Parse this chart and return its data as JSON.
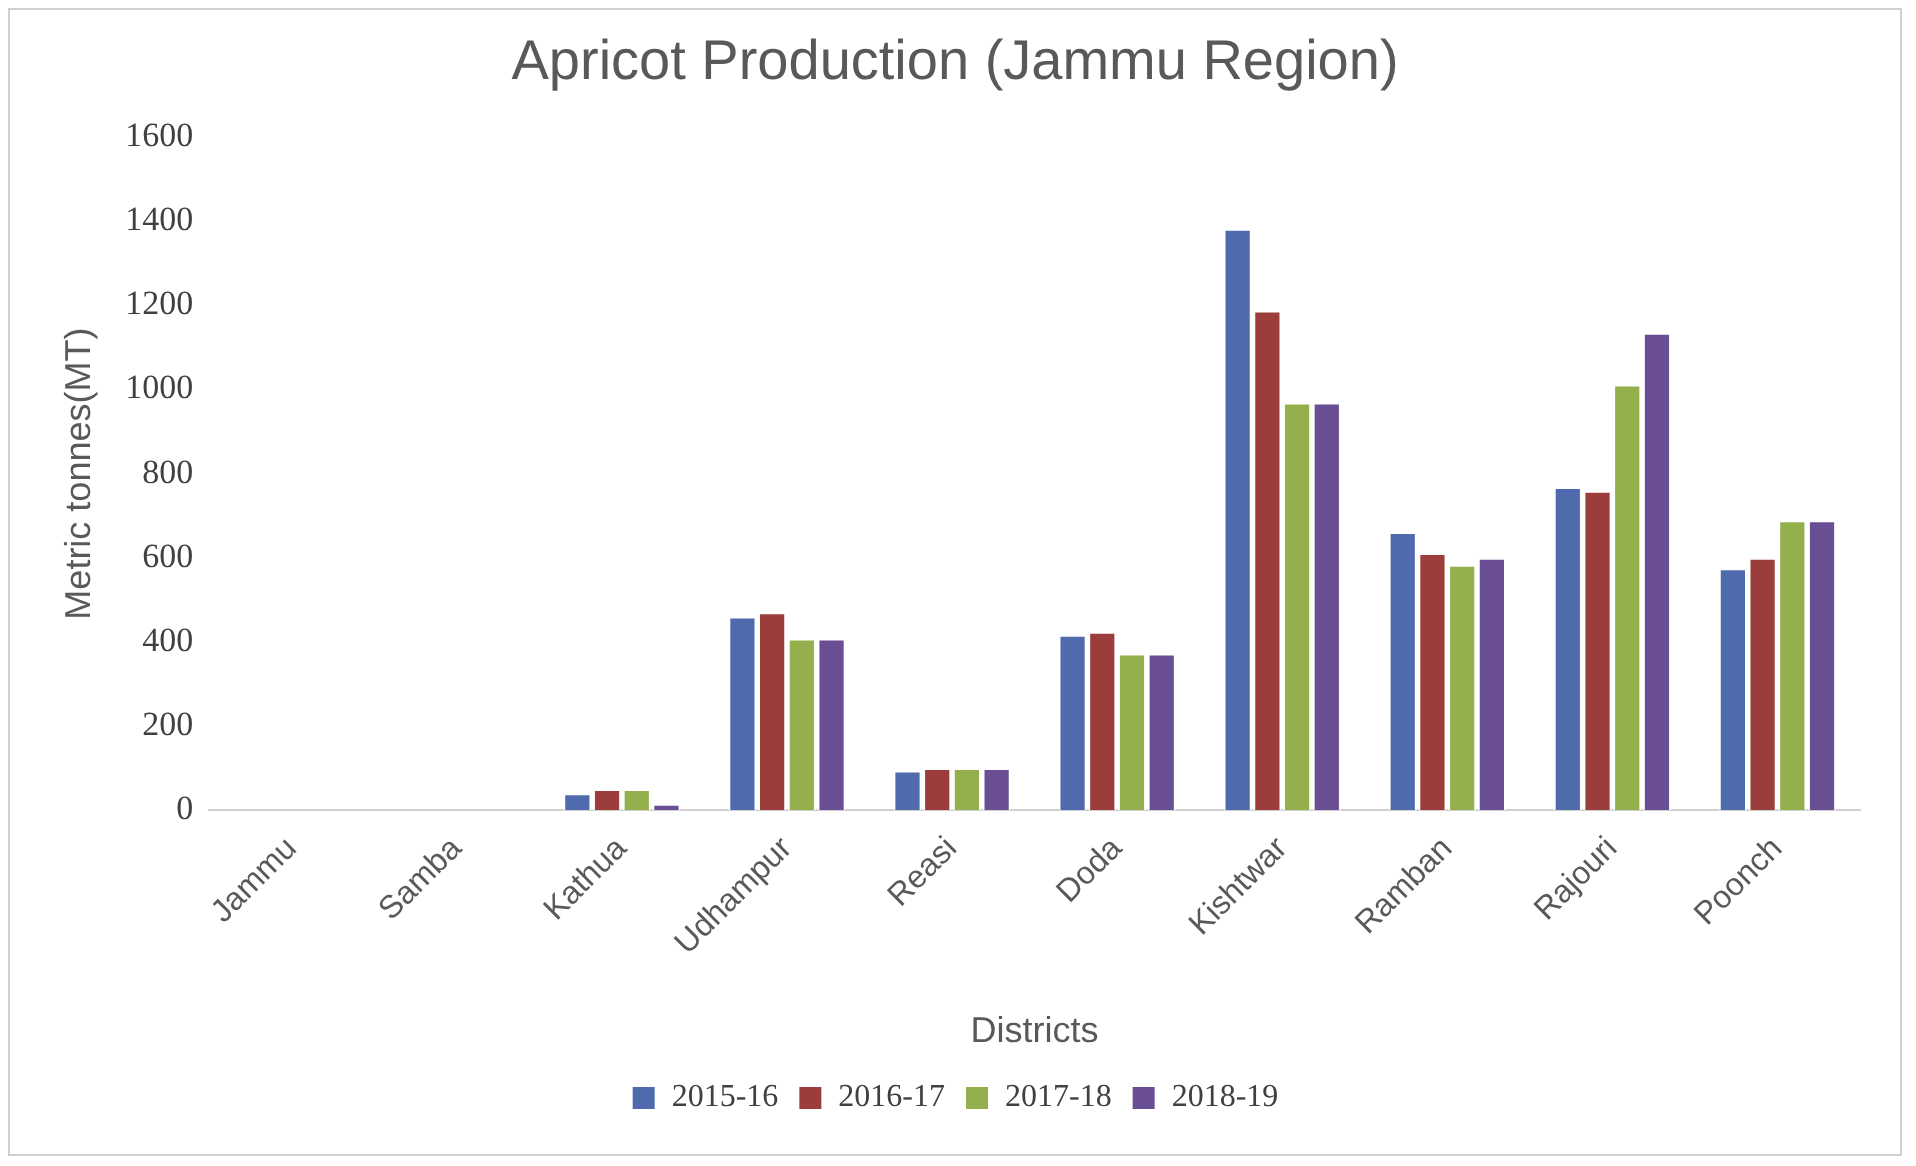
{
  "chart_data": {
    "type": "bar",
    "title": "Apricot Production (Jammu Region)",
    "xlabel": "Districts",
    "ylabel": "Metric tonnes(MT)",
    "categories": [
      "Jammu",
      "Samba",
      "Kathua",
      "Udhampur",
      "Reasi",
      "Doda",
      "Kishtwar",
      "Ramban",
      "Rajouri",
      "Poonch"
    ],
    "series": [
      {
        "name": "2015-16",
        "color": "#4f6bad",
        "values": [
          0,
          0,
          40,
          460,
          94,
          417,
          1382,
          661,
          768,
          575
        ]
      },
      {
        "name": "2016-17",
        "color": "#9b3d3a",
        "values": [
          0,
          0,
          50,
          470,
          100,
          424,
          1188,
          611,
          759,
          600
        ]
      },
      {
        "name": "2017-18",
        "color": "#93b04c",
        "values": [
          0,
          0,
          50,
          408,
          100,
          372,
          969,
          583,
          1012,
          689
        ]
      },
      {
        "name": "2018-19",
        "color": "#6a4e94",
        "values": [
          0,
          0,
          15,
          408,
          100,
          372,
          969,
          600,
          1135,
          689
        ]
      }
    ],
    "ylim": [
      0,
      1600
    ],
    "yticks": [
      0,
      200,
      400,
      600,
      800,
      1000,
      1200,
      1400,
      1600
    ],
    "grid": false,
    "legend": "bottom"
  }
}
